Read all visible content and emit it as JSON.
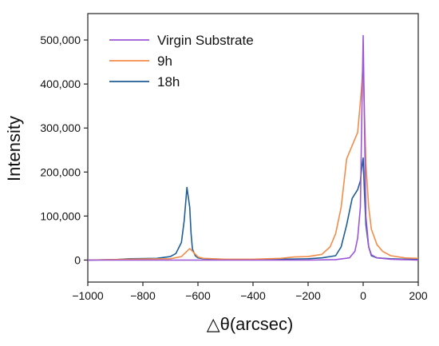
{
  "chart_data": {
    "type": "line",
    "xlabel": "△θ(arcsec)",
    "ylabel": "Intensity",
    "xlim": [
      -1000,
      200
    ],
    "ylim": [
      -50000,
      560000
    ],
    "x_ticks": [
      -1000,
      -800,
      -600,
      -400,
      -200,
      0,
      200
    ],
    "x_tick_labels": [
      "−1000",
      "−800",
      "−600",
      "−400",
      "−200",
      "0",
      "200"
    ],
    "y_ticks": [
      0,
      100000,
      200000,
      300000,
      400000,
      500000
    ],
    "y_tick_labels": [
      "0",
      "100,000",
      "200,000",
      "300,000",
      "400,000",
      "500,000"
    ],
    "grid": false,
    "legend_position": "top-left",
    "series": [
      {
        "name": "Virgin Substrate",
        "color": "#9b55d6",
        "x": [
          -1000,
          -200,
          -100,
          -50,
          -30,
          -20,
          -10,
          -5,
          0,
          5,
          10,
          20,
          30,
          50,
          100,
          200
        ],
        "y": [
          0,
          0,
          1000,
          5000,
          20000,
          50000,
          120000,
          330000,
          510000,
          300000,
          100000,
          30000,
          12000,
          5000,
          2000,
          0
        ]
      },
      {
        "name": "9h",
        "color": "#f28c4a",
        "x": [
          -1000,
          -850,
          -700,
          -660,
          -640,
          -630,
          -620,
          -600,
          -580,
          -500,
          -400,
          -300,
          -250,
          -200,
          -150,
          -120,
          -100,
          -80,
          -60,
          -40,
          -20,
          -10,
          -5,
          0,
          5,
          10,
          20,
          30,
          50,
          70,
          100,
          150,
          200
        ],
        "y": [
          0,
          2000,
          3000,
          8000,
          20000,
          26000,
          20000,
          7000,
          4000,
          2000,
          2000,
          4000,
          7000,
          8000,
          13000,
          30000,
          60000,
          120000,
          230000,
          260000,
          290000,
          360000,
          400000,
          450000,
          330000,
          220000,
          120000,
          70000,
          35000,
          20000,
          10000,
          5000,
          4000
        ]
      },
      {
        "name": "18h",
        "color": "#1f5d96",
        "x": [
          -1000,
          -900,
          -850,
          -750,
          -700,
          -680,
          -660,
          -650,
          -640,
          -630,
          -625,
          -620,
          -610,
          -600,
          -580,
          -550,
          -500,
          -400,
          -300,
          -200,
          -150,
          -100,
          -80,
          -60,
          -40,
          -20,
          -10,
          -5,
          0,
          5,
          10,
          20,
          30,
          50,
          100,
          150,
          200
        ],
        "y": [
          0,
          1000,
          3000,
          4000,
          8000,
          15000,
          40000,
          90000,
          165000,
          120000,
          60000,
          25000,
          10000,
          5000,
          3000,
          2000,
          1000,
          1000,
          2000,
          3000,
          5000,
          10000,
          30000,
          80000,
          140000,
          160000,
          180000,
          210000,
          232000,
          150000,
          80000,
          30000,
          10000,
          5000,
          3000,
          2000,
          2000
        ]
      }
    ]
  }
}
